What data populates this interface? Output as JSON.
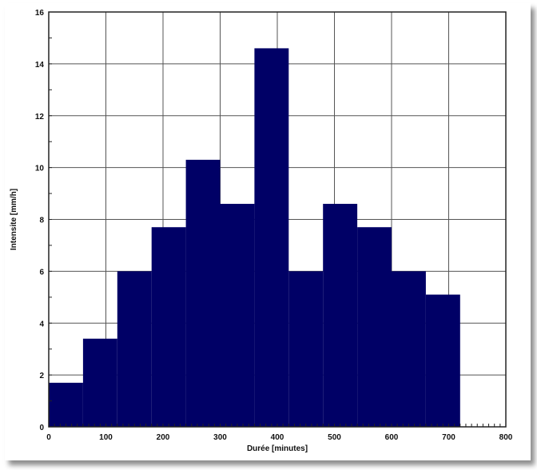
{
  "chart_data": {
    "type": "bar",
    "xlabel": "Durée [minutes]",
    "ylabel": "Intensite [mm/h]",
    "xlim": [
      0,
      800
    ],
    "ylim": [
      0,
      16
    ],
    "x_ticks": [
      0,
      100,
      200,
      300,
      400,
      500,
      600,
      700,
      800
    ],
    "y_ticks": [
      0,
      2,
      4,
      6,
      8,
      10,
      12,
      14,
      16
    ],
    "grid": true,
    "bar_color": "#000066",
    "bins": [
      {
        "start": 0,
        "end": 60,
        "value": 1.7
      },
      {
        "start": 60,
        "end": 120,
        "value": 3.4
      },
      {
        "start": 120,
        "end": 180,
        "value": 6.0
      },
      {
        "start": 180,
        "end": 240,
        "value": 7.7
      },
      {
        "start": 240,
        "end": 300,
        "value": 10.3
      },
      {
        "start": 300,
        "end": 360,
        "value": 8.6
      },
      {
        "start": 360,
        "end": 420,
        "value": 14.6
      },
      {
        "start": 420,
        "end": 480,
        "value": 6.0
      },
      {
        "start": 480,
        "end": 540,
        "value": 8.6
      },
      {
        "start": 540,
        "end": 600,
        "value": 7.7
      },
      {
        "start": 600,
        "end": 660,
        "value": 6.0
      },
      {
        "start": 660,
        "end": 720,
        "value": 5.1
      }
    ]
  }
}
